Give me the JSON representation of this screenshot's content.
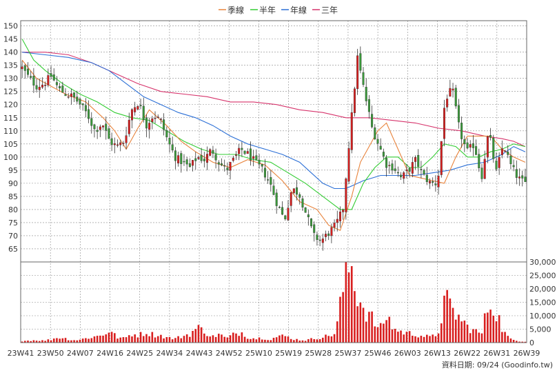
{
  "legend": {
    "items": [
      {
        "label": "季線",
        "color": "#e8823a"
      },
      {
        "label": "半年",
        "color": "#33cc33"
      },
      {
        "label": "年線",
        "color": "#2b6fd6"
      },
      {
        "label": "三年",
        "color": "#d6336b"
      }
    ]
  },
  "footer": {
    "text": "資料日期: 09/24  (Goodinfo.tw)"
  },
  "colors": {
    "up": "#d81e1e",
    "down": "#3a9a3a",
    "volume": "#d81e1e",
    "grid": "#888888"
  },
  "chart_data": {
    "type": "candlestick-volume",
    "price_axis": {
      "min": 60,
      "max": 152,
      "ticks": [
        65,
        70,
        75,
        80,
        85,
        90,
        95,
        100,
        105,
        110,
        115,
        120,
        125,
        130,
        135,
        140,
        145,
        150
      ]
    },
    "volume_axis": {
      "min": 0,
      "max": 30000,
      "ticks": [
        0,
        5000,
        10000,
        15000,
        20000,
        25000,
        30000
      ],
      "tick_labels": [
        "0",
        "5,000",
        "10,000",
        "15,000",
        "20,000",
        "25,000",
        "30,000"
      ]
    },
    "x_labels": [
      "23W41",
      "23W50",
      "24W07",
      "24W16",
      "24W25",
      "24W34",
      "24W43",
      "24W52",
      "25W10",
      "25W19",
      "25W28",
      "25W37",
      "25W46",
      "26W03",
      "26W13",
      "26W22",
      "26W31",
      "26W39"
    ],
    "grid": true,
    "legend_position": "top-center",
    "price_anchors": [
      134,
      130,
      127,
      128,
      131,
      126,
      124,
      123,
      120,
      116,
      110,
      113,
      106,
      104,
      106,
      118,
      121,
      112,
      116,
      114,
      106,
      100,
      98,
      96,
      100,
      99,
      103,
      98,
      95,
      99,
      103,
      101,
      98,
      95,
      90,
      82,
      76,
      88,
      86,
      78,
      70,
      68,
      71,
      74,
      80,
      110,
      138,
      124,
      111,
      104,
      97,
      96,
      92,
      95,
      99,
      93,
      90,
      90,
      122,
      126,
      110,
      102,
      105,
      92,
      110,
      94,
      105,
      97,
      92,
      90
    ],
    "volume_anchors": [
      600,
      800,
      900,
      700,
      1200,
      2000,
      1500,
      900,
      1100,
      1800,
      2200,
      2800,
      4500,
      2000,
      1500,
      3200,
      2800,
      3800,
      3000,
      2600,
      1800,
      1500,
      2400,
      3200,
      5500,
      4500,
      2000,
      3200,
      1500,
      3000,
      4000,
      2000,
      1500,
      1800,
      1200,
      2200,
      2500,
      1500,
      1000,
      900,
      1500,
      2000,
      2500,
      3500,
      20000,
      30000,
      18000,
      12000,
      9000,
      4500,
      10000,
      5000,
      4000,
      3500,
      3000,
      2500,
      2000,
      3000,
      16000,
      12000,
      9000,
      6000,
      4500,
      3000,
      15000,
      12000,
      4000,
      1200,
      600,
      400
    ],
    "ma_quarter": [
      [
        0,
        137
      ],
      [
        5,
        130
      ],
      [
        10,
        127
      ],
      [
        15,
        124
      ],
      [
        22,
        121
      ],
      [
        28,
        115
      ],
      [
        32,
        110
      ],
      [
        36,
        103
      ],
      [
        40,
        111
      ],
      [
        44,
        118
      ],
      [
        50,
        112
      ],
      [
        55,
        106
      ],
      [
        60,
        102
      ],
      [
        66,
        98
      ],
      [
        72,
        96
      ],
      [
        78,
        99
      ],
      [
        84,
        97
      ],
      [
        90,
        91
      ],
      [
        96,
        83
      ],
      [
        102,
        80
      ],
      [
        106,
        74
      ],
      [
        110,
        72
      ],
      [
        114,
        85
      ],
      [
        117,
        98
      ],
      [
        120,
        104
      ],
      [
        123,
        110
      ],
      [
        126,
        113
      ],
      [
        130,
        103
      ],
      [
        134,
        93
      ],
      [
        138,
        92
      ],
      [
        142,
        91
      ],
      [
        146,
        90
      ],
      [
        150,
        100
      ],
      [
        154,
        108
      ],
      [
        158,
        108
      ],
      [
        162,
        108
      ],
      [
        166,
        103
      ],
      [
        170,
        100
      ],
      [
        174,
        98
      ]
    ],
    "ma_half": [
      [
        0,
        145
      ],
      [
        4,
        137
      ],
      [
        8,
        133
      ],
      [
        14,
        128
      ],
      [
        20,
        124
      ],
      [
        26,
        121
      ],
      [
        32,
        117
      ],
      [
        38,
        115
      ],
      [
        44,
        114
      ],
      [
        50,
        110
      ],
      [
        56,
        106
      ],
      [
        62,
        103
      ],
      [
        68,
        101
      ],
      [
        74,
        101
      ],
      [
        80,
        99
      ],
      [
        86,
        98
      ],
      [
        92,
        94
      ],
      [
        98,
        90
      ],
      [
        104,
        85
      ],
      [
        110,
        80
      ],
      [
        114,
        80
      ],
      [
        118,
        90
      ],
      [
        122,
        96
      ],
      [
        126,
        100
      ],
      [
        130,
        100
      ],
      [
        134,
        96
      ],
      [
        138,
        96
      ],
      [
        142,
        100
      ],
      [
        146,
        105
      ],
      [
        150,
        104
      ],
      [
        154,
        100
      ],
      [
        158,
        100
      ],
      [
        162,
        102
      ],
      [
        166,
        103
      ],
      [
        170,
        105
      ],
      [
        174,
        104
      ]
    ],
    "ma_year": [
      [
        0,
        140
      ],
      [
        8,
        139
      ],
      [
        16,
        138
      ],
      [
        24,
        136
      ],
      [
        30,
        133
      ],
      [
        36,
        128
      ],
      [
        42,
        123
      ],
      [
        48,
        120
      ],
      [
        54,
        117
      ],
      [
        60,
        115
      ],
      [
        66,
        112
      ],
      [
        72,
        108
      ],
      [
        78,
        105
      ],
      [
        84,
        103
      ],
      [
        90,
        101
      ],
      [
        96,
        98
      ],
      [
        100,
        94
      ],
      [
        104,
        90
      ],
      [
        108,
        88
      ],
      [
        112,
        88
      ],
      [
        118,
        91
      ],
      [
        124,
        93
      ],
      [
        130,
        93
      ],
      [
        136,
        93
      ],
      [
        142,
        94
      ],
      [
        148,
        95
      ],
      [
        154,
        97
      ],
      [
        160,
        98
      ],
      [
        166,
        101
      ],
      [
        170,
        104
      ],
      [
        174,
        102
      ]
    ],
    "ma_three_year": [
      [
        0,
        140
      ],
      [
        8,
        140
      ],
      [
        16,
        139
      ],
      [
        24,
        136
      ],
      [
        32,
        132
      ],
      [
        40,
        128
      ],
      [
        48,
        125
      ],
      [
        56,
        124
      ],
      [
        64,
        123
      ],
      [
        72,
        121
      ],
      [
        80,
        121
      ],
      [
        88,
        120
      ],
      [
        96,
        118
      ],
      [
        104,
        117
      ],
      [
        112,
        115
      ],
      [
        120,
        115
      ],
      [
        128,
        114
      ],
      [
        136,
        113
      ],
      [
        144,
        111
      ],
      [
        152,
        110
      ],
      [
        160,
        108
      ],
      [
        166,
        107
      ],
      [
        170,
        106
      ],
      [
        174,
        104
      ]
    ],
    "weeks": 175
  }
}
